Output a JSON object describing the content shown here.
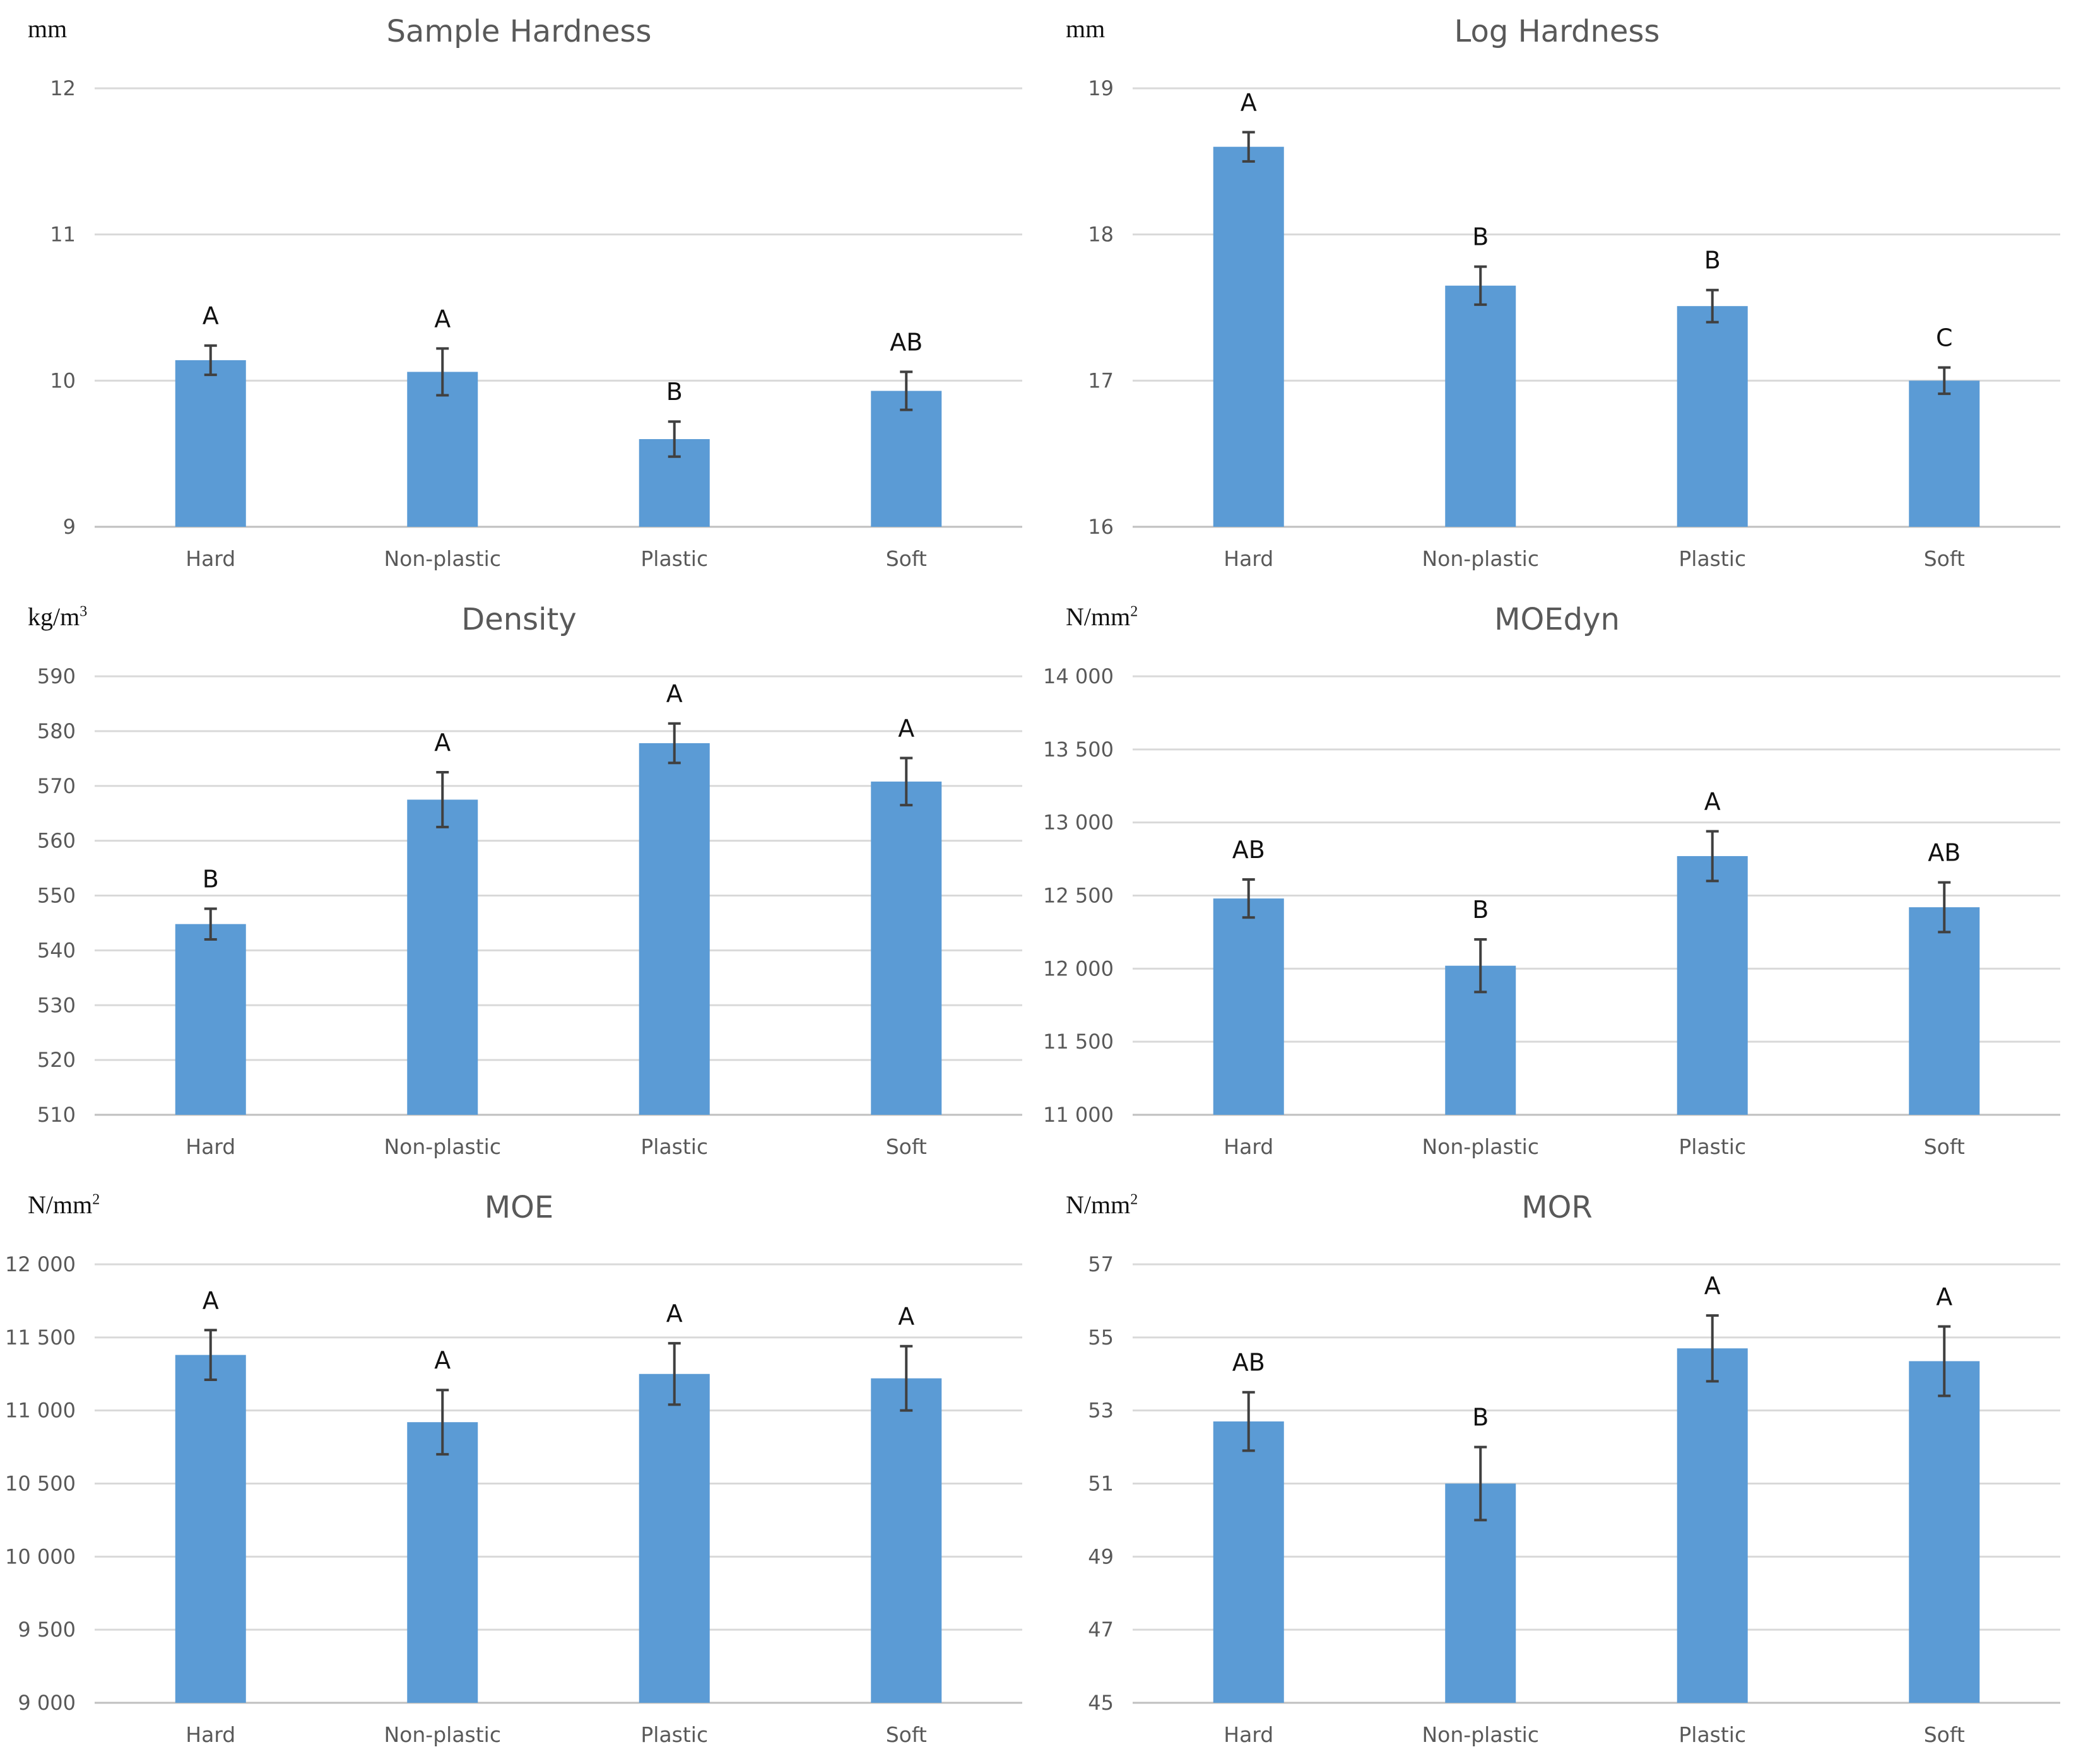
{
  "colors": {
    "bar": "#5b9bd5",
    "grid": "#d9d9d9",
    "text": "#595959"
  },
  "chart_data": [
    {
      "type": "bar",
      "title": "Sample Hardness",
      "unit": "mm",
      "unit_sup": "",
      "categories": [
        "Hard",
        "Non-plastic",
        "Plastic",
        "Soft"
      ],
      "values": [
        10.14,
        10.06,
        9.6,
        9.93
      ],
      "errors": [
        0.1,
        0.16,
        0.12,
        0.13
      ],
      "labels": [
        "A",
        "A",
        "B",
        "AB"
      ],
      "ylim": [
        9,
        12
      ],
      "ticks": [
        9,
        10,
        11,
        12
      ],
      "tick_labels": [
        "9",
        "10",
        "11",
        "12"
      ],
      "grid": true
    },
    {
      "type": "bar",
      "title": "Log Hardness",
      "unit": "mm",
      "unit_sup": "",
      "categories": [
        "Hard",
        "Non-plastic",
        "Plastic",
        "Soft"
      ],
      "values": [
        18.6,
        17.65,
        17.51,
        17.0
      ],
      "errors": [
        0.1,
        0.13,
        0.11,
        0.09
      ],
      "labels": [
        "A",
        "B",
        "B",
        "C"
      ],
      "ylim": [
        16,
        19
      ],
      "ticks": [
        16,
        17,
        18,
        19
      ],
      "tick_labels": [
        "16",
        "17",
        "18",
        "19"
      ],
      "grid": true
    },
    {
      "type": "bar",
      "title": "Density",
      "unit": "kg/m",
      "unit_sup": "3",
      "categories": [
        "Hard",
        "Non-plastic",
        "Plastic",
        "Soft"
      ],
      "values": [
        544.8,
        567.5,
        577.8,
        570.8
      ],
      "errors": [
        2.8,
        5,
        3.6,
        4.3
      ],
      "labels": [
        "B",
        "A",
        "A",
        "A"
      ],
      "ylim": [
        510,
        590
      ],
      "ticks": [
        510,
        520,
        530,
        540,
        550,
        560,
        570,
        580,
        590
      ],
      "tick_labels": [
        "510",
        "520",
        "530",
        "540",
        "550",
        "560",
        "570",
        "580",
        "590"
      ],
      "grid": true
    },
    {
      "type": "bar",
      "title": "MOEdyn",
      "unit": "N/mm",
      "unit_sup": "2",
      "categories": [
        "Hard",
        "Non-plastic",
        "Plastic",
        "Soft"
      ],
      "values": [
        12480,
        12020,
        12770,
        12420
      ],
      "errors": [
        130,
        180,
        170,
        170
      ],
      "labels": [
        "AB",
        "B",
        "A",
        "AB"
      ],
      "ylim": [
        11000,
        14000
      ],
      "ticks": [
        11000,
        11500,
        12000,
        12500,
        13000,
        13500,
        14000
      ],
      "tick_labels": [
        "11 000",
        "11 500",
        "12 000",
        "12 500",
        "13 000",
        "13 500",
        "14 000"
      ],
      "grid": true
    },
    {
      "type": "bar",
      "title": "MOE",
      "unit": "N/mm",
      "unit_sup": "2",
      "categories": [
        "Hard",
        "Non-plastic",
        "Plastic",
        "Soft"
      ],
      "values": [
        11380,
        10920,
        11250,
        11220
      ],
      "errors": [
        170,
        220,
        210,
        220
      ],
      "labels": [
        "A",
        "A",
        "A",
        "A"
      ],
      "ylim": [
        9000,
        12000
      ],
      "ticks": [
        9000,
        9500,
        10000,
        10500,
        11000,
        11500,
        12000
      ],
      "tick_labels": [
        "9 000",
        "9 500",
        "10 000",
        "10 500",
        "11 000",
        "11 500",
        "12 000"
      ],
      "grid": true
    },
    {
      "type": "bar",
      "title": "MOR",
      "unit": "N/mm",
      "unit_sup": "2",
      "categories": [
        "Hard",
        "Non-plastic",
        "Plastic",
        "Soft"
      ],
      "values": [
        52.7,
        51.0,
        54.7,
        54.35
      ],
      "errors": [
        0.8,
        1.0,
        0.9,
        0.95
      ],
      "labels": [
        "AB",
        "B",
        "A",
        "A"
      ],
      "ylim": [
        45,
        57
      ],
      "ticks": [
        45,
        47,
        49,
        51,
        53,
        55,
        57
      ],
      "tick_labels": [
        "45",
        "47",
        "49",
        "51",
        "53",
        "55",
        "57"
      ],
      "grid": true
    }
  ]
}
